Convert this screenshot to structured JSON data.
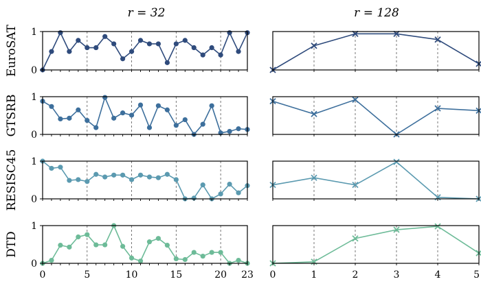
{
  "column_titles": [
    "r = 32",
    "r = 128"
  ],
  "row_labels": [
    "EuroSAT",
    "GTSRB",
    "RESISC45",
    "DTD"
  ],
  "colors": {
    "EuroSAT": "#2f4b7c",
    "GTSRB": "#3d6f9c",
    "RESISC45": "#5b9ab0",
    "DTD": "#6dbb98"
  },
  "chart_data": [
    {
      "type": "line",
      "marker": "dot",
      "row": "EuroSAT",
      "col": "r = 32",
      "x": [
        0,
        1,
        2,
        3,
        4,
        5,
        6,
        7,
        8,
        9,
        10,
        11,
        12,
        13,
        14,
        15,
        16,
        17,
        18,
        19,
        20,
        21,
        22,
        23
      ],
      "values": [
        0.0,
        0.48,
        0.97,
        0.48,
        0.77,
        0.58,
        0.58,
        0.87,
        0.68,
        0.29,
        0.48,
        0.77,
        0.68,
        0.68,
        0.19,
        0.68,
        0.77,
        0.58,
        0.39,
        0.58,
        0.39,
        0.97,
        0.48,
        0.97
      ],
      "xlim": [
        0,
        23
      ],
      "ylim": [
        0,
        1
      ],
      "yticks": [
        0,
        1
      ],
      "xticks": [
        0,
        5,
        10,
        15,
        20,
        23
      ],
      "grid_x": [
        5,
        10,
        15,
        20
      ]
    },
    {
      "type": "line",
      "marker": "x",
      "row": "EuroSAT",
      "col": "r = 128",
      "x": [
        0,
        1,
        2,
        3,
        4,
        5
      ],
      "values": [
        0.0,
        0.63,
        0.94,
        0.94,
        0.79,
        0.16
      ],
      "xlim": [
        0,
        5
      ],
      "ylim": [
        0,
        1
      ],
      "xticks": [
        0,
        1,
        2,
        3,
        4,
        5
      ],
      "grid_x": [
        1,
        2,
        3,
        4
      ]
    },
    {
      "type": "line",
      "marker": "dot",
      "row": "GTSRB",
      "col": "r = 32",
      "x": [
        0,
        1,
        2,
        3,
        4,
        5,
        6,
        7,
        8,
        9,
        10,
        11,
        12,
        13,
        14,
        15,
        16,
        17,
        18,
        19,
        20,
        21,
        22,
        23
      ],
      "values": [
        0.88,
        0.74,
        0.41,
        0.43,
        0.65,
        0.37,
        0.18,
        0.98,
        0.43,
        0.57,
        0.51,
        0.78,
        0.18,
        0.76,
        0.65,
        0.24,
        0.39,
        0.0,
        0.27,
        0.76,
        0.04,
        0.08,
        0.15,
        0.13
      ],
      "xlim": [
        0,
        23
      ],
      "ylim": [
        0,
        1
      ],
      "yticks": [
        0,
        1
      ],
      "xticks": [
        0,
        5,
        10,
        15,
        20,
        23
      ],
      "grid_x": [
        5,
        10,
        15,
        20
      ]
    },
    {
      "type": "line",
      "marker": "x",
      "row": "GTSRB",
      "col": "r = 128",
      "x": [
        0,
        1,
        2,
        3,
        4,
        5
      ],
      "values": [
        0.88,
        0.54,
        0.92,
        0.0,
        0.69,
        0.63
      ],
      "xlim": [
        0,
        5
      ],
      "ylim": [
        0,
        1
      ],
      "xticks": [
        0,
        1,
        2,
        3,
        4,
        5
      ],
      "grid_x": [
        1,
        2,
        3,
        4
      ]
    },
    {
      "type": "line",
      "marker": "dot",
      "row": "RESISC45",
      "col": "r = 32",
      "x": [
        0,
        1,
        2,
        3,
        4,
        5,
        6,
        7,
        8,
        9,
        10,
        11,
        12,
        13,
        14,
        15,
        16,
        17,
        18,
        19,
        20,
        21,
        22,
        23
      ],
      "values": [
        1.0,
        0.81,
        0.84,
        0.49,
        0.51,
        0.46,
        0.65,
        0.58,
        0.63,
        0.63,
        0.51,
        0.63,
        0.58,
        0.56,
        0.65,
        0.51,
        0.0,
        0.02,
        0.37,
        0.0,
        0.13,
        0.39,
        0.16,
        0.35
      ],
      "xlim": [
        0,
        23
      ],
      "ylim": [
        0,
        1
      ],
      "yticks": [
        0,
        1
      ],
      "xticks": [
        0,
        5,
        10,
        15,
        20,
        23
      ],
      "grid_x": [
        5,
        10,
        15,
        20
      ]
    },
    {
      "type": "line",
      "marker": "x",
      "row": "RESISC45",
      "col": "r = 128",
      "x": [
        0,
        1,
        2,
        3,
        4,
        5
      ],
      "values": [
        0.37,
        0.56,
        0.37,
        0.98,
        0.04,
        0.0
      ],
      "xlim": [
        0,
        5
      ],
      "ylim": [
        0,
        1
      ],
      "xticks": [
        0,
        1,
        2,
        3,
        4,
        5
      ],
      "grid_x": [
        1,
        2,
        3,
        4
      ]
    },
    {
      "type": "line",
      "marker": "dot",
      "row": "DTD",
      "col": "r = 32",
      "x": [
        0,
        1,
        2,
        3,
        4,
        5,
        6,
        7,
        8,
        9,
        10,
        11,
        12,
        13,
        14,
        15,
        16,
        17,
        18,
        19,
        20,
        21,
        22,
        23
      ],
      "values": [
        0.0,
        0.08,
        0.48,
        0.43,
        0.7,
        0.76,
        0.49,
        0.49,
        1.0,
        0.45,
        0.14,
        0.06,
        0.57,
        0.66,
        0.48,
        0.12,
        0.1,
        0.29,
        0.19,
        0.29,
        0.29,
        0.0,
        0.08,
        0.0
      ],
      "xlim": [
        0,
        23
      ],
      "ylim": [
        0,
        1
      ],
      "yticks": [
        0,
        1
      ],
      "xticks": [
        0,
        5,
        10,
        15,
        20,
        23
      ],
      "grid_x": [
        5,
        10,
        15,
        20
      ]
    },
    {
      "type": "line",
      "marker": "x",
      "row": "DTD",
      "col": "r = 128",
      "x": [
        0,
        1,
        2,
        3,
        4,
        5
      ],
      "values": [
        0.0,
        0.04,
        0.66,
        0.89,
        0.98,
        0.27
      ],
      "xlim": [
        0,
        5
      ],
      "ylim": [
        0,
        1
      ],
      "xticks": [
        0,
        1,
        2,
        3,
        4,
        5
      ],
      "grid_x": [
        1,
        2,
        3,
        4
      ]
    }
  ]
}
